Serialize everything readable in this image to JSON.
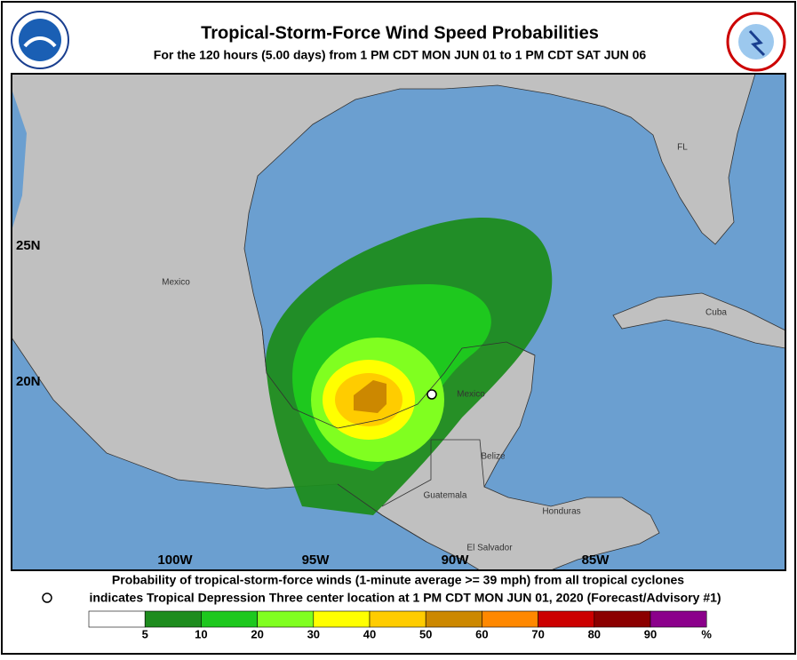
{
  "header": {
    "title": "Tropical-Storm-Force Wind Speed Probabilities",
    "subtitle": "For the 120 hours (5.00 days) from 1 PM CDT MON JUN 01 to 1 PM CDT SAT JUN 06"
  },
  "map": {
    "latitude_labels": [
      "25N",
      "20N"
    ],
    "longitude_labels": [
      "100W",
      "95W",
      "90W",
      "85W"
    ],
    "place_labels": [
      "Mexico",
      "FL",
      "Cuba",
      "Mexico",
      "Belize",
      "Guatemala",
      "Honduras",
      "El Salvador"
    ]
  },
  "caption": {
    "line1": "Probability of tropical-storm-force winds (1-minute average >= 39 mph) from all tropical cyclones",
    "line2": "indicates Tropical Depression Three center location at 1 PM CDT MON JUN 01, 2020 (Forecast/Advisory #1)"
  },
  "legend": {
    "colors": [
      "#ffffff",
      "#1e8c1e",
      "#1ec81e",
      "#80ff20",
      "#ffff00",
      "#ffcc00",
      "#cc8800",
      "#ff8800",
      "#cc0000",
      "#8b0000",
      "#8b008b"
    ],
    "labels": [
      5,
      10,
      20,
      30,
      40,
      50,
      60,
      70,
      80,
      90
    ],
    "unit": "%"
  }
}
